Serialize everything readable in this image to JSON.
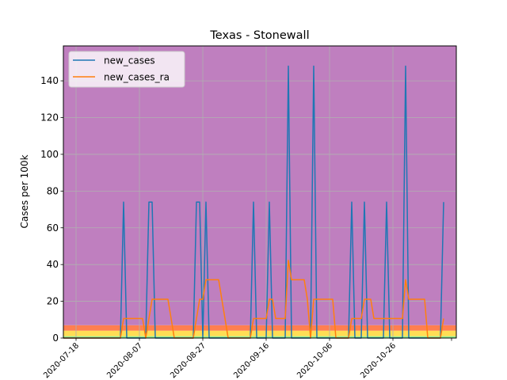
{
  "chart_data": {
    "type": "line",
    "title": "Texas - Stonewall",
    "xlabel": "",
    "ylabel": "Cases per 100k",
    "x_range": [
      "2020-07-14",
      "2020-11-15"
    ],
    "ylim": [
      0,
      159
    ],
    "x_ticks": [
      "2020-07-18",
      "2020-08-07",
      "2020-08-27",
      "2020-09-16",
      "2020-10-06",
      "2020-10-26"
    ],
    "y_ticks": [
      0,
      20,
      40,
      60,
      80,
      100,
      120,
      140
    ],
    "grid": true,
    "legend_position": "top-left",
    "background_bands": [
      {
        "from": 0,
        "to": 1,
        "color": "#90ee90"
      },
      {
        "from": 1,
        "to": 4,
        "color": "#ffdd55"
      },
      {
        "from": 4,
        "to": 7,
        "color": "#ff7f50"
      },
      {
        "from": 7,
        "to": 159,
        "color": "#bf7fbf"
      }
    ],
    "series": [
      {
        "name": "new_cases",
        "color": "#1f77b4",
        "points": [
          [
            "2020-07-14",
            0
          ],
          [
            "2020-08-01",
            0
          ],
          [
            "2020-08-02",
            74
          ],
          [
            "2020-08-03",
            0
          ],
          [
            "2020-08-09",
            0
          ],
          [
            "2020-08-10",
            74
          ],
          [
            "2020-08-11",
            74
          ],
          [
            "2020-08-12",
            0
          ],
          [
            "2020-08-24",
            0
          ],
          [
            "2020-08-25",
            74
          ],
          [
            "2020-08-26",
            74
          ],
          [
            "2020-08-27",
            0
          ],
          [
            "2020-08-28",
            74
          ],
          [
            "2020-08-29",
            0
          ],
          [
            "2020-09-11",
            0
          ],
          [
            "2020-09-12",
            74
          ],
          [
            "2020-09-13",
            0
          ],
          [
            "2020-09-16",
            0
          ],
          [
            "2020-09-17",
            74
          ],
          [
            "2020-09-18",
            0
          ],
          [
            "2020-09-22",
            0
          ],
          [
            "2020-09-23",
            148
          ],
          [
            "2020-09-24",
            0
          ],
          [
            "2020-09-30",
            0
          ],
          [
            "2020-10-01",
            148
          ],
          [
            "2020-10-02",
            0
          ],
          [
            "2020-10-12",
            0
          ],
          [
            "2020-10-13",
            74
          ],
          [
            "2020-10-14",
            0
          ],
          [
            "2020-10-16",
            0
          ],
          [
            "2020-10-17",
            74
          ],
          [
            "2020-10-18",
            0
          ],
          [
            "2020-10-23",
            0
          ],
          [
            "2020-10-24",
            74
          ],
          [
            "2020-10-25",
            0
          ],
          [
            "2020-10-29",
            0
          ],
          [
            "2020-10-30",
            148
          ],
          [
            "2020-10-31",
            0
          ],
          [
            "2020-11-10",
            0
          ],
          [
            "2020-11-11",
            74
          ]
        ]
      },
      {
        "name": "new_cases_ra",
        "color": "#ff7f0e",
        "points": [
          [
            "2020-07-14",
            0
          ],
          [
            "2020-08-01",
            0
          ],
          [
            "2020-08-02",
            10.6
          ],
          [
            "2020-08-08",
            10.6
          ],
          [
            "2020-08-09",
            0
          ],
          [
            "2020-08-10",
            10.6
          ],
          [
            "2020-08-11",
            21.1
          ],
          [
            "2020-08-16",
            21.1
          ],
          [
            "2020-08-17",
            10.6
          ],
          [
            "2020-08-18",
            0
          ],
          [
            "2020-08-24",
            0
          ],
          [
            "2020-08-25",
            10.6
          ],
          [
            "2020-08-26",
            21.1
          ],
          [
            "2020-08-27",
            21.1
          ],
          [
            "2020-08-28",
            31.7
          ],
          [
            "2020-09-01",
            31.7
          ],
          [
            "2020-09-02",
            21.1
          ],
          [
            "2020-09-03",
            10.6
          ],
          [
            "2020-09-04",
            0
          ],
          [
            "2020-09-11",
            0
          ],
          [
            "2020-09-12",
            10.6
          ],
          [
            "2020-09-16",
            10.6
          ],
          [
            "2020-09-17",
            21.1
          ],
          [
            "2020-09-18",
            21.1
          ],
          [
            "2020-09-19",
            10.6
          ],
          [
            "2020-09-22",
            10.6
          ],
          [
            "2020-09-23",
            42.3
          ],
          [
            "2020-09-24",
            31.7
          ],
          [
            "2020-09-28",
            31.7
          ],
          [
            "2020-09-29",
            21.1
          ],
          [
            "2020-09-30",
            0
          ],
          [
            "2020-10-01",
            21.1
          ],
          [
            "2020-10-07",
            21.1
          ],
          [
            "2020-10-08",
            0
          ],
          [
            "2020-10-12",
            0
          ],
          [
            "2020-10-13",
            10.6
          ],
          [
            "2020-10-16",
            10.6
          ],
          [
            "2020-10-17",
            21.1
          ],
          [
            "2020-10-19",
            21.1
          ],
          [
            "2020-10-20",
            10.6
          ],
          [
            "2020-10-29",
            10.6
          ],
          [
            "2020-10-30",
            31.7
          ],
          [
            "2020-10-31",
            21.1
          ],
          [
            "2020-11-05",
            21.1
          ],
          [
            "2020-11-06",
            0
          ],
          [
            "2020-11-10",
            0
          ],
          [
            "2020-11-11",
            10.6
          ]
        ]
      }
    ]
  }
}
